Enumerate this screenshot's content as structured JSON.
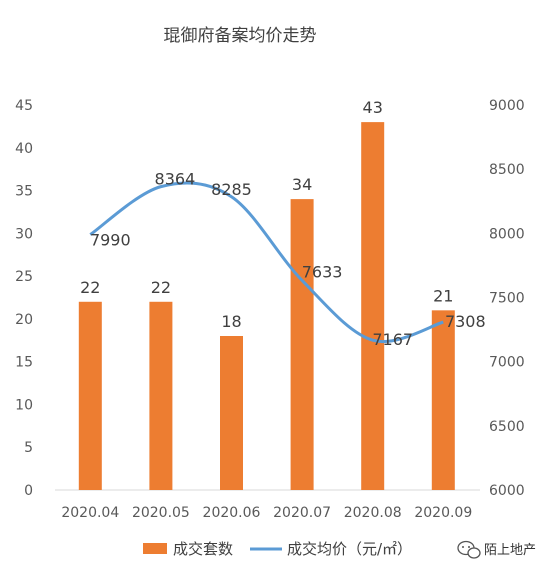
{
  "chart_data": {
    "type": "bar+line",
    "title": "琨御府备案均价走势",
    "categories": [
      "2020.04",
      "2020.05",
      "2020.06",
      "2020.07",
      "2020.08",
      "2020.09"
    ],
    "series": [
      {
        "name": "成交套数",
        "type": "bar",
        "axis": "left",
        "values": [
          22,
          22,
          18,
          34,
          43,
          21
        ],
        "labels": [
          "22",
          "22",
          "18",
          "34",
          "43",
          "21"
        ],
        "color": "#ED7D31"
      },
      {
        "name": "成交均价（元/㎡）",
        "type": "line",
        "axis": "right",
        "smooth": true,
        "values": [
          7990,
          8364,
          8285,
          7633,
          7167,
          7308
        ],
        "labels": [
          "7990",
          "8364",
          "8285",
          "7633",
          "7167",
          "7308"
        ],
        "color": "#5B9BD5"
      }
    ],
    "left_axis": {
      "min": 0,
      "max": 45,
      "step": 5,
      "ticks": [
        "0",
        "5",
        "10",
        "15",
        "20",
        "25",
        "30",
        "35",
        "40",
        "45"
      ]
    },
    "right_axis": {
      "min": 6000,
      "max": 9000,
      "step": 500,
      "ticks": [
        "6000",
        "6500",
        "7000",
        "7500",
        "8000",
        "8500",
        "9000"
      ]
    },
    "grid": false,
    "legend": {
      "position": "bottom",
      "items": [
        "成交套数",
        "成交均价（元/㎡）"
      ]
    }
  },
  "watermark": {
    "text": "陌上地产",
    "icon": "wechat-icon"
  }
}
